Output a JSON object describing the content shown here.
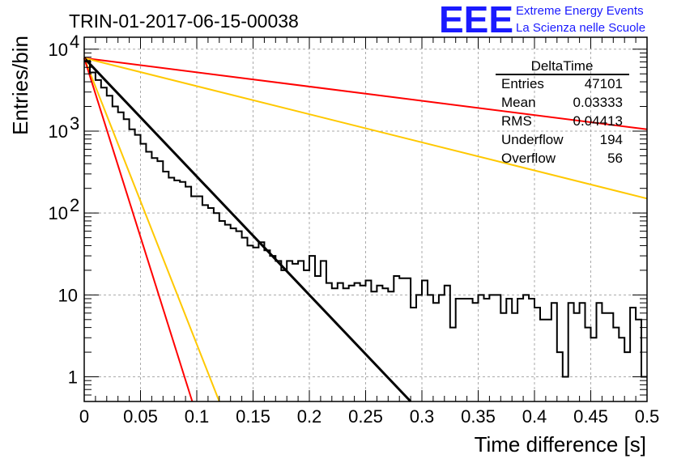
{
  "chart_data": {
    "type": "line",
    "title": "TRIN-01-2017-06-15-00038",
    "xlabel": "Time difference [s]",
    "ylabel": "Entries/bin",
    "xlim": [
      0,
      0.5
    ],
    "ylim": [
      0.5,
      14000
    ],
    "y_scale": "log",
    "grid": true,
    "x_ticks": [
      {
        "value": 0,
        "label": "0"
      },
      {
        "value": 0.05,
        "label": "0.05"
      },
      {
        "value": 0.1,
        "label": "0.1"
      },
      {
        "value": 0.15,
        "label": "0.15"
      },
      {
        "value": 0.2,
        "label": "0.2"
      },
      {
        "value": 0.25,
        "label": "0.25"
      },
      {
        "value": 0.3,
        "label": "0.3"
      },
      {
        "value": 0.35,
        "label": "0.35"
      },
      {
        "value": 0.4,
        "label": "0.4"
      },
      {
        "value": 0.45,
        "label": "0.45"
      },
      {
        "value": 0.5,
        "label": "0.5"
      }
    ],
    "y_ticks": [
      {
        "value": 1,
        "label": "1"
      },
      {
        "value": 10,
        "label": "10"
      },
      {
        "value": 100,
        "label": "10",
        "exp": "2"
      },
      {
        "value": 1000,
        "label": "10",
        "exp": "3"
      },
      {
        "value": 10000,
        "label": "10",
        "exp": "4"
      }
    ],
    "histogram": {
      "name": "DeltaTime",
      "color": "#000000",
      "bin_width": 0.005,
      "counts": [
        7200,
        5200,
        4200,
        3400,
        2700,
        2000,
        1700,
        1400,
        1050,
        900,
        700,
        560,
        470,
        430,
        320,
        270,
        250,
        240,
        210,
        160,
        160,
        125,
        115,
        100,
        80,
        72,
        65,
        60,
        50,
        40,
        38,
        44,
        35,
        30,
        26,
        20,
        26,
        24,
        26,
        20,
        30,
        17,
        26,
        14,
        12,
        14,
        12,
        13,
        14,
        13,
        15,
        11,
        13,
        12,
        11,
        17,
        16,
        16,
        7,
        10,
        15,
        10,
        8,
        10,
        13,
        4,
        9,
        9,
        9,
        8,
        10,
        9,
        10,
        10,
        6,
        9,
        6,
        9,
        10,
        9,
        7,
        5,
        5,
        8,
        2,
        1,
        8,
        6,
        8,
        4,
        3,
        8,
        6,
        6,
        4,
        3,
        2,
        7,
        5,
        1
      ]
    },
    "series": [
      {
        "color": "#ff0000",
        "x": [
          0,
          0.5
        ],
        "y": [
          7800,
          1050
        ]
      },
      {
        "color": "#ffc800",
        "x": [
          0,
          0.5
        ],
        "y": [
          7800,
          150
        ]
      },
      {
        "color": "#000000",
        "x": [
          0,
          0.29
        ],
        "y": [
          7800,
          0.5
        ]
      },
      {
        "color": "#ffc800",
        "x": [
          0,
          0.12
        ],
        "y": [
          7800,
          0.5
        ]
      },
      {
        "color": "#ff0000",
        "x": [
          0,
          0.096
        ],
        "y": [
          7800,
          0.5
        ]
      }
    ],
    "stats_box": {
      "title": "DeltaTime",
      "rows": [
        {
          "label": "Entries",
          "value": "47101"
        },
        {
          "label": "Mean",
          "value": "0.03333"
        },
        {
          "label": "RMS",
          "value": "0.04413"
        },
        {
          "label": "Underflow",
          "value": "194"
        },
        {
          "label": "Overflow",
          "value": "56"
        }
      ]
    }
  },
  "logo": {
    "mark": "EEE",
    "line1": "Extreme Energy Events",
    "line2": "La Scienza nelle Scuole",
    "color": "#1a1aff"
  }
}
